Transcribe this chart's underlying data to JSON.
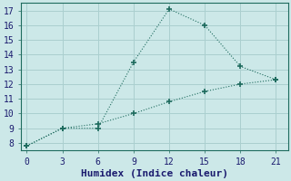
{
  "xlabel": "Humidex (Indice chaleur)",
  "bg_color": "#cce8e8",
  "line_color": "#1e6b5e",
  "grid_color": "#aacfcf",
  "spine_color": "#1e6b5e",
  "line1_x": [
    0,
    3,
    6,
    9,
    12,
    15,
    18,
    21
  ],
  "line1_y": [
    7.8,
    9.0,
    9.0,
    13.5,
    17.1,
    16.0,
    13.2,
    12.3
  ],
  "line2_x": [
    0,
    3,
    6,
    9,
    12,
    15,
    18,
    21
  ],
  "line2_y": [
    7.8,
    9.0,
    9.3,
    10.0,
    10.8,
    11.5,
    12.0,
    12.3
  ],
  "xlim": [
    -0.5,
    22
  ],
  "ylim": [
    7.5,
    17.5
  ],
  "xticks": [
    0,
    3,
    6,
    9,
    12,
    15,
    18,
    21
  ],
  "yticks": [
    8,
    9,
    10,
    11,
    12,
    13,
    14,
    15,
    16,
    17
  ],
  "xlabel_fontsize": 8,
  "tick_fontsize": 7
}
